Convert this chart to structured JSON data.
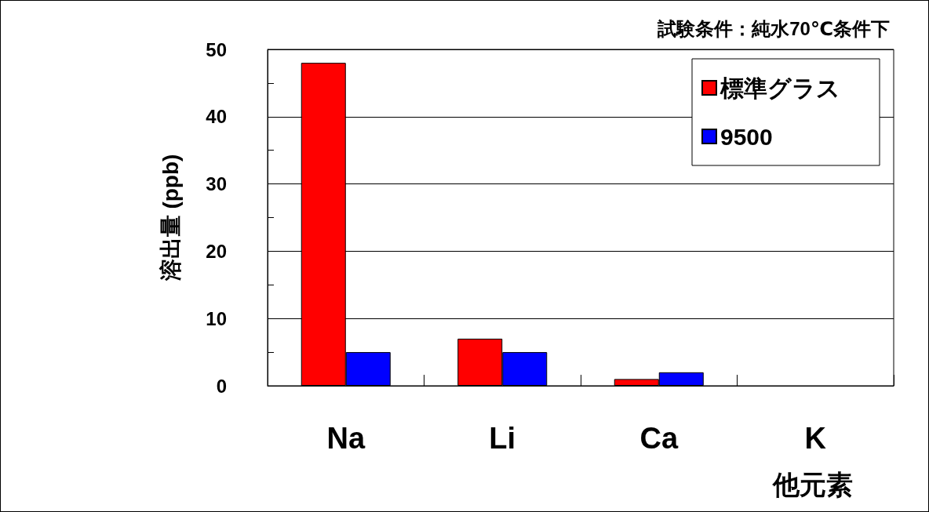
{
  "chart_data": {
    "type": "bar",
    "title": "試験条件：純水70℃条件下",
    "xlabel": "他元素",
    "ylabel": "溶出量 (ppb)",
    "categories": [
      "Na",
      "Li",
      "Ca",
      "K"
    ],
    "series": [
      {
        "name": "標準グラス",
        "color": "#ff0000",
        "values": [
          48,
          7,
          1,
          0
        ]
      },
      {
        "name": "9500",
        "color": "#0000ff",
        "values": [
          5,
          5,
          2,
          0
        ]
      }
    ],
    "ylim": [
      0,
      50
    ],
    "yticks": [
      0,
      {
        "value": 5,
        "label": null
      },
      10,
      {
        "value": 15,
        "label": null
      },
      20,
      {
        "value": 25,
        "label": null
      },
      30,
      {
        "value": 35,
        "label": null
      },
      40,
      {
        "value": 45,
        "label": null
      },
      50
    ],
    "grid": "y",
    "legend": "top right",
    "marker": "square"
  }
}
